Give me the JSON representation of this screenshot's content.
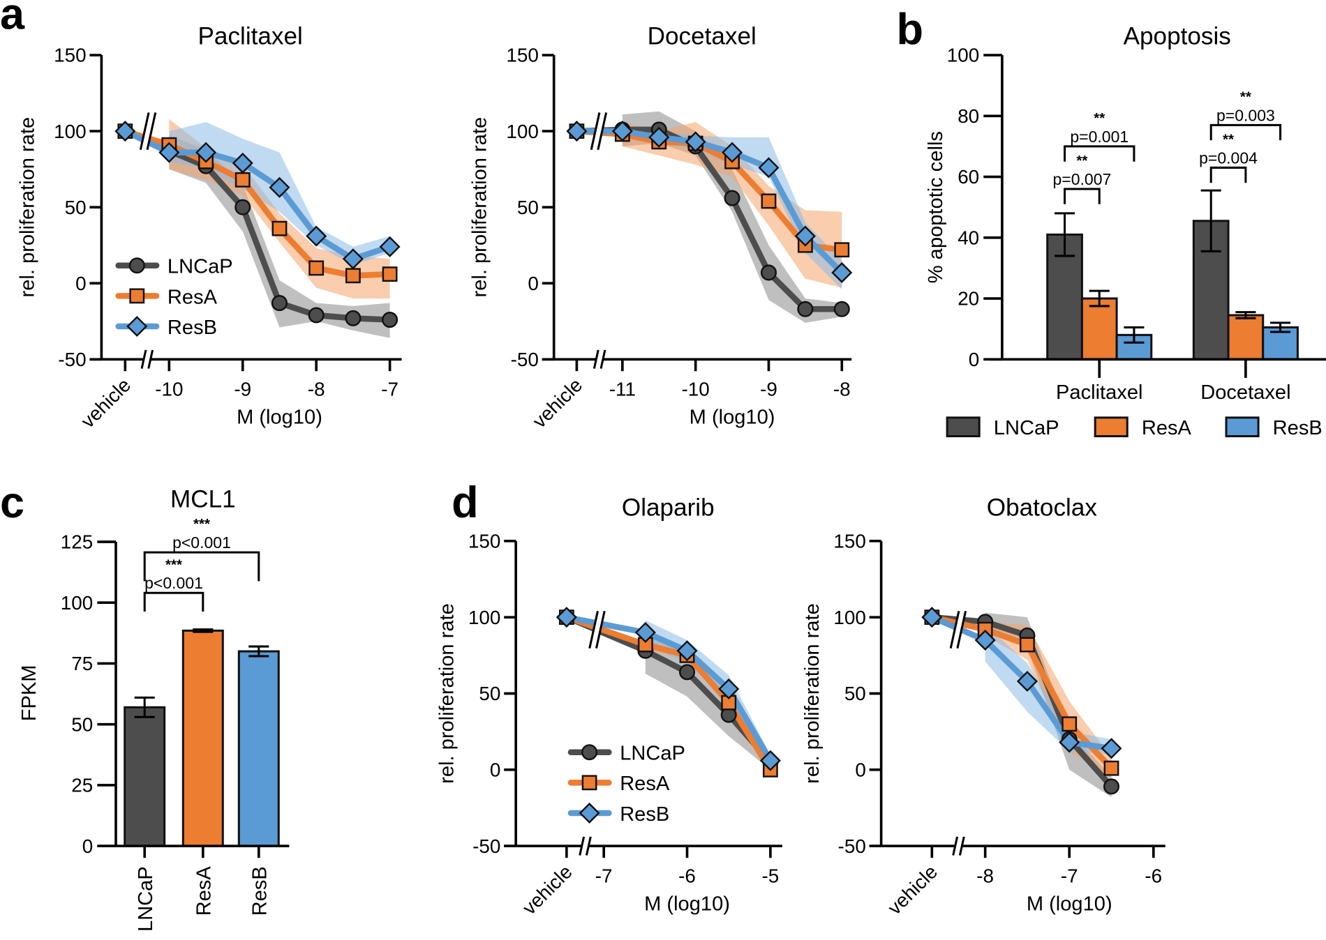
{
  "panel_letters": {
    "a": "a",
    "b": "b",
    "c": "c",
    "d": "d"
  },
  "colors": {
    "LNCaP": "#4d4d4d",
    "ResA": "#ed7d31",
    "ResB": "#5b9bd5",
    "axis": "#000000"
  },
  "chart_data": [
    {
      "type": "line",
      "title": "Paclitaxel",
      "xlabel": "M (log10)",
      "ylabel": "rel. proliferation rate",
      "ylim": [
        -50,
        150
      ],
      "yticks": [
        150,
        100,
        50,
        0,
        -50
      ],
      "xticks": [
        "vehicle",
        -10,
        -9,
        -8,
        -7
      ],
      "axis_break": true,
      "legend": "bottom-left",
      "x": [
        "vehicle",
        -10,
        -9.5,
        -9,
        -8.5,
        -8,
        -7.5,
        -7
      ],
      "series": [
        {
          "name": "LNCaP",
          "marker": "circle",
          "values": [
            100,
            87,
            77,
            50,
            -13,
            -21,
            -23,
            -24
          ],
          "lower": [
            null,
            75,
            66,
            34,
            -29,
            -25,
            -31,
            -36
          ],
          "upper": [
            null,
            97,
            88,
            65,
            2,
            -13,
            -15,
            -13
          ]
        },
        {
          "name": "ResA",
          "marker": "square",
          "values": [
            100,
            91,
            80,
            68,
            36,
            10,
            5,
            6
          ],
          "lower": [
            null,
            75,
            68,
            58,
            27,
            -3,
            -10,
            -10
          ],
          "upper": [
            null,
            108,
            89,
            78,
            46,
            23,
            18,
            16
          ]
        },
        {
          "name": "ResB",
          "marker": "diamond",
          "values": [
            100,
            86,
            86,
            79,
            63,
            31,
            16,
            24
          ],
          "lower": [
            null,
            80,
            75,
            62,
            47,
            25,
            12,
            20
          ],
          "upper": [
            null,
            100,
            106,
            95,
            86,
            37,
            24,
            31
          ]
        }
      ]
    },
    {
      "type": "line",
      "title": "Docetaxel",
      "xlabel": "M (log10)",
      "ylabel": "rel. proliferation rate",
      "ylim": [
        -50,
        150
      ],
      "yticks": [
        150,
        100,
        50,
        0,
        -50
      ],
      "xticks": [
        "vehicle",
        -11,
        -10,
        -9,
        -8
      ],
      "axis_break": true,
      "x": [
        "vehicle",
        -11,
        -10.5,
        -10,
        -9.5,
        -9,
        -8.5,
        -8
      ],
      "series": [
        {
          "name": "LNCaP",
          "marker": "circle",
          "values": [
            100,
            101,
            101,
            90,
            56,
            7,
            -17,
            -17
          ],
          "lower": [
            null,
            90,
            92,
            84,
            47,
            -11,
            -26,
            -22
          ],
          "upper": [
            null,
            111,
            113,
            100,
            75,
            25,
            -10,
            -13
          ]
        },
        {
          "name": "ResA",
          "marker": "square",
          "values": [
            100,
            98,
            93,
            92,
            80,
            54,
            25,
            22
          ],
          "lower": [
            null,
            90,
            84,
            78,
            70,
            38,
            3,
            -3
          ],
          "upper": [
            null,
            106,
            100,
            106,
            90,
            64,
            48,
            47
          ]
        },
        {
          "name": "ResB",
          "marker": "diamond",
          "values": [
            100,
            100,
            96,
            93,
            86,
            76,
            31,
            7
          ],
          "lower": [
            null,
            98,
            92,
            88,
            78,
            70,
            20,
            -4
          ],
          "upper": [
            null,
            102,
            100,
            97,
            96,
            96,
            40,
            15
          ]
        }
      ]
    },
    {
      "type": "bar",
      "title": "Apoptosis",
      "ylabel": "% apoptotic cells",
      "ylim": [
        0,
        100
      ],
      "yticks": [
        100,
        80,
        60,
        40,
        20,
        0
      ],
      "categories": [
        "Paclitaxel",
        "Docetaxel"
      ],
      "legend": "bottom",
      "series": [
        {
          "name": "LNCaP",
          "values": [
            41,
            45.5
          ],
          "error": [
            7,
            10
          ]
        },
        {
          "name": "ResA",
          "values": [
            20,
            14.5
          ],
          "error": [
            2.5,
            1
          ]
        },
        {
          "name": "ResB",
          "values": [
            8,
            10.5
          ],
          "error": [
            2.5,
            1.5
          ]
        }
      ],
      "comparisons": [
        {
          "group": 0,
          "from": 0,
          "to": 1,
          "y": 56,
          "p": "p=0.007",
          "stars": "**"
        },
        {
          "group": 0,
          "from": 0,
          "to": 2,
          "y": 70,
          "p": "p=0.001",
          "stars": "**"
        },
        {
          "group": 1,
          "from": 0,
          "to": 1,
          "y": 63,
          "p": "p=0.004",
          "stars": "**"
        },
        {
          "group": 1,
          "from": 0,
          "to": 2,
          "y": 77,
          "p": "p=0.003",
          "stars": "**"
        }
      ]
    },
    {
      "type": "bar",
      "title": "MCL1",
      "ylabel": "FPKM",
      "ylim": [
        0,
        125
      ],
      "yticks": [
        125,
        100,
        75,
        50,
        25,
        0
      ],
      "categories": [
        "LNCaP",
        "ResA",
        "ResB"
      ],
      "values": [
        57,
        88.5,
        80
      ],
      "error": [
        4,
        0.5,
        2
      ],
      "comparisons": [
        {
          "from": 0,
          "to": 1,
          "y": 104,
          "p": "p<0.001",
          "stars": "***"
        },
        {
          "from": 0,
          "to": 2,
          "y": 116.5,
          "p": "p<0.001",
          "stars": "***"
        }
      ]
    },
    {
      "type": "line",
      "title": "Olaparib",
      "xlabel": "M (log10)",
      "ylabel": "rel. proliferation rate",
      "ylim": [
        -50,
        150
      ],
      "yticks": [
        150,
        100,
        50,
        0,
        -50
      ],
      "xticks": [
        "vehicle",
        -7,
        -6,
        -5
      ],
      "axis_break": true,
      "legend": "bottom-left",
      "x": [
        "vehicle",
        -6.5,
        -6,
        -5.5,
        -5
      ],
      "series": [
        {
          "name": "LNCaP",
          "marker": "circle",
          "values": [
            100,
            78,
            64,
            36,
            5
          ],
          "lower": [
            null,
            63,
            48,
            22,
            0
          ],
          "upper": [
            null,
            90,
            78,
            50,
            10
          ]
        },
        {
          "name": "ResA",
          "marker": "square",
          "values": [
            100,
            82,
            75,
            44,
            0
          ],
          "lower": [
            null,
            79,
            72,
            41,
            -3
          ],
          "upper": [
            null,
            85,
            78,
            47,
            3
          ]
        },
        {
          "name": "ResB",
          "marker": "diamond",
          "values": [
            100,
            90,
            78,
            53,
            6
          ],
          "lower": [
            null,
            82,
            70,
            45,
            2
          ],
          "upper": [
            null,
            98,
            85,
            62,
            10
          ]
        }
      ]
    },
    {
      "type": "line",
      "title": "Obatoclax",
      "xlabel": "M (log10)",
      "ylabel": "rel. proliferation rate",
      "ylim": [
        -50,
        150
      ],
      "yticks": [
        150,
        100,
        50,
        0,
        -50
      ],
      "xticks": [
        "vehicle",
        -8,
        -7,
        -6
      ],
      "axis_break": true,
      "x": [
        "vehicle",
        -8,
        -7.5,
        -7,
        -6.5
      ],
      "series": [
        {
          "name": "LNCaP",
          "marker": "circle",
          "values": [
            100,
            97,
            88,
            20,
            -11
          ],
          "lower": [
            null,
            90,
            80,
            0,
            -18
          ],
          "upper": [
            null,
            103,
            100,
            25,
            -4
          ]
        },
        {
          "name": "ResA",
          "marker": "square",
          "values": [
            100,
            92,
            82,
            30,
            1
          ],
          "lower": [
            null,
            88,
            72,
            12,
            -5
          ],
          "upper": [
            null,
            97,
            95,
            45,
            8
          ]
        },
        {
          "name": "ResB",
          "marker": "diamond",
          "values": [
            100,
            85,
            58,
            18,
            14
          ],
          "lower": [
            null,
            71,
            38,
            12,
            10
          ],
          "upper": [
            null,
            95,
            70,
            25,
            20
          ]
        }
      ]
    }
  ]
}
